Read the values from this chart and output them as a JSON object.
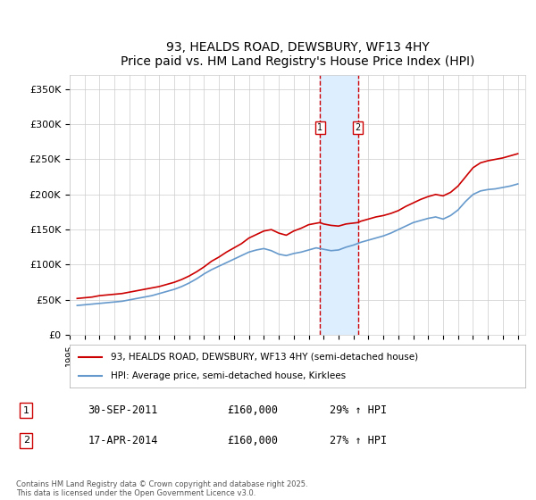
{
  "title": "93, HEALDS ROAD, DEWSBURY, WF13 4HY",
  "subtitle": "Price paid vs. HM Land Registry's House Price Index (HPI)",
  "xlabel": "",
  "ylabel": "",
  "ylim": [
    0,
    370000
  ],
  "yticks": [
    0,
    50000,
    100000,
    150000,
    200000,
    250000,
    300000,
    350000
  ],
  "ytick_labels": [
    "£0",
    "£50K",
    "£100K",
    "£150K",
    "£200K",
    "£250K",
    "£300K",
    "£350K"
  ],
  "xlim_start": 1995.0,
  "xlim_end": 2025.5,
  "background_color": "#ffffff",
  "grid_color": "#cccccc",
  "sale1_date": 2011.75,
  "sale2_date": 2014.29,
  "sale1_label": "1",
  "sale2_label": "2",
  "sale1_price": 160000,
  "sale2_price": 160000,
  "sale1_text": "30-SEP-2011",
  "sale2_text": "17-APR-2014",
  "sale1_hpi": "29% ↑ HPI",
  "sale2_hpi": "27% ↑ HPI",
  "red_line_color": "#cc0000",
  "blue_line_color": "#6699cc",
  "shade_color": "#ddeeff",
  "dashed_color": "#cc0000",
  "legend_red_label": "93, HEALDS ROAD, DEWSBURY, WF13 4HY (semi-detached house)",
  "legend_blue_label": "HPI: Average price, semi-detached house, Kirklees",
  "footer": "Contains HM Land Registry data © Crown copyright and database right 2025.\nThis data is licensed under the Open Government Licence v3.0.",
  "red_x": [
    1995.5,
    1996.0,
    1996.5,
    1997.0,
    1997.5,
    1998.0,
    1998.5,
    1999.0,
    1999.5,
    2000.0,
    2000.5,
    2001.0,
    2001.5,
    2002.0,
    2002.5,
    2003.0,
    2003.5,
    2004.0,
    2004.5,
    2005.0,
    2005.5,
    2006.0,
    2006.5,
    2007.0,
    2007.5,
    2008.0,
    2008.5,
    2009.0,
    2009.5,
    2010.0,
    2010.5,
    2011.0,
    2011.75,
    2012.0,
    2012.5,
    2013.0,
    2013.5,
    2014.29,
    2014.5,
    2015.0,
    2015.5,
    2016.0,
    2016.5,
    2017.0,
    2017.5,
    2018.0,
    2018.5,
    2019.0,
    2019.5,
    2020.0,
    2020.5,
    2021.0,
    2021.5,
    2022.0,
    2022.5,
    2023.0,
    2023.5,
    2024.0,
    2024.5,
    2025.0
  ],
  "red_y": [
    52000,
    53000,
    54000,
    56000,
    57000,
    58000,
    59000,
    61000,
    63000,
    65000,
    67000,
    69000,
    72000,
    75000,
    79000,
    84000,
    90000,
    97000,
    105000,
    111000,
    118000,
    124000,
    130000,
    138000,
    143000,
    148000,
    150000,
    145000,
    142000,
    148000,
    152000,
    157000,
    160000,
    158000,
    156000,
    155000,
    158000,
    160000,
    162000,
    165000,
    168000,
    170000,
    173000,
    177000,
    183000,
    188000,
    193000,
    197000,
    200000,
    198000,
    203000,
    212000,
    225000,
    238000,
    245000,
    248000,
    250000,
    252000,
    255000,
    258000
  ],
  "blue_x": [
    1995.5,
    1996.0,
    1996.5,
    1997.0,
    1997.5,
    1998.0,
    1998.5,
    1999.0,
    1999.5,
    2000.0,
    2000.5,
    2001.0,
    2001.5,
    2002.0,
    2002.5,
    2003.0,
    2003.5,
    2004.0,
    2004.5,
    2005.0,
    2005.5,
    2006.0,
    2006.5,
    2007.0,
    2007.5,
    2008.0,
    2008.5,
    2009.0,
    2009.5,
    2010.0,
    2010.5,
    2011.0,
    2011.5,
    2012.0,
    2012.5,
    2013.0,
    2013.5,
    2014.0,
    2014.5,
    2015.0,
    2015.5,
    2016.0,
    2016.5,
    2017.0,
    2017.5,
    2018.0,
    2018.5,
    2019.0,
    2019.5,
    2020.0,
    2020.5,
    2021.0,
    2021.5,
    2022.0,
    2022.5,
    2023.0,
    2023.5,
    2024.0,
    2024.5,
    2025.0
  ],
  "blue_y": [
    42000,
    43000,
    44000,
    45000,
    46000,
    47000,
    48000,
    50000,
    52000,
    54000,
    56000,
    59000,
    62000,
    65000,
    69000,
    74000,
    80000,
    87000,
    93000,
    98000,
    103000,
    108000,
    113000,
    118000,
    121000,
    123000,
    120000,
    115000,
    113000,
    116000,
    118000,
    121000,
    124000,
    122000,
    120000,
    121000,
    125000,
    128000,
    132000,
    135000,
    138000,
    141000,
    145000,
    150000,
    155000,
    160000,
    163000,
    166000,
    168000,
    165000,
    170000,
    178000,
    190000,
    200000,
    205000,
    207000,
    208000,
    210000,
    212000,
    215000
  ]
}
